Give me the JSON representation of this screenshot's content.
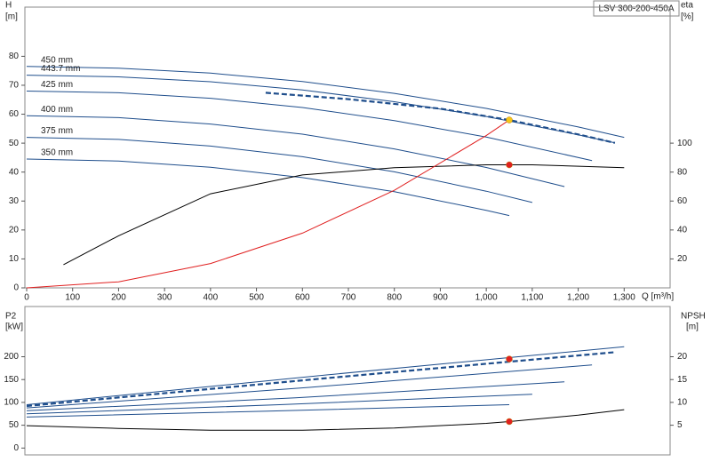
{
  "chart_data": [
    {
      "type": "line",
      "title": "LSV 300-200-450A",
      "xlabel": "Q [m³/h]",
      "ylabel": "H",
      "yunit": "[m]",
      "y2label": "eta",
      "y2unit": "[%]",
      "xlim": [
        0,
        1400
      ],
      "xticks": [
        0,
        100,
        200,
        300,
        400,
        500,
        600,
        700,
        800,
        900,
        {
          "value": 1000,
          "label": "1,000"
        },
        {
          "value": 1100,
          "label": "1,100"
        },
        {
          "value": 1200,
          "label": "1,200"
        },
        {
          "value": 1300,
          "label": "1,300"
        }
      ],
      "ylim": [
        0,
        97
      ],
      "yticks": [
        0,
        10,
        20,
        30,
        40,
        50,
        60,
        70,
        80
      ],
      "y2lim": [
        0,
        194
      ],
      "y2ticks": [
        20,
        40,
        60,
        80,
        100
      ],
      "series": [
        {
          "name": "450 mm",
          "color": "#1f4e8c",
          "x": [
            0,
            200,
            400,
            600,
            800,
            1000,
            1200,
            1300
          ],
          "values": [
            76.5,
            75.9,
            74.2,
            71.3,
            67.2,
            62.0,
            55.6,
            52.0
          ]
        },
        {
          "name": "443.7 mm",
          "color": "#1f4e8c",
          "x": [
            0,
            200,
            400,
            600,
            800,
            1000,
            1200,
            1280
          ],
          "values": [
            73.5,
            72.9,
            71.2,
            68.4,
            64.3,
            59.2,
            52.9,
            50.1
          ]
        },
        {
          "name": "425 mm",
          "color": "#1f4e8c",
          "x": [
            0,
            200,
            400,
            600,
            800,
            1000,
            1230
          ],
          "values": [
            68.0,
            67.4,
            65.5,
            62.3,
            57.8,
            52.1,
            44.0
          ]
        },
        {
          "name": "400 mm",
          "color": "#1f4e8c",
          "x": [
            0,
            200,
            400,
            600,
            800,
            1000,
            1170
          ],
          "values": [
            59.5,
            58.8,
            56.6,
            53.1,
            48.0,
            41.6,
            35.0
          ]
        },
        {
          "name": "375 mm",
          "color": "#1f4e8c",
          "x": [
            0,
            200,
            400,
            600,
            800,
            1000,
            1100
          ],
          "values": [
            52.0,
            51.3,
            49.0,
            45.3,
            40.1,
            33.4,
            29.5
          ]
        },
        {
          "name": "350 mm",
          "color": "#1f4e8c",
          "x": [
            0,
            200,
            400,
            600,
            800,
            1000,
            1050
          ],
          "values": [
            44.5,
            43.8,
            41.7,
            38.1,
            33.2,
            26.8,
            25.0
          ]
        },
        {
          "color": "#1f4e8c",
          "style": "dashed",
          "x": [
            520,
            700,
            900,
            1050,
            1200,
            1280
          ],
          "values": [
            67.4,
            65.2,
            61.9,
            58.0,
            53.0,
            50.1
          ]
        },
        {
          "color": "#000000",
          "axis": "y2",
          "x": [
            80,
            200,
            400,
            600,
            800,
            1000,
            1100,
            1300
          ],
          "values": [
            16,
            36,
            65,
            78,
            83,
            85,
            85,
            83
          ]
        },
        {
          "color": "#e02020",
          "x": [
            0,
            200,
            400,
            600,
            800,
            1000,
            1050
          ],
          "values": [
            0,
            2.1,
            8.4,
            18.9,
            33.7,
            52.6,
            58.0
          ]
        }
      ],
      "points": [
        {
          "x": 1050,
          "value": 58.0,
          "color": "#f5c518"
        },
        {
          "x": 1050,
          "value": 85,
          "color": "#e02020",
          "axis": "y2"
        }
      ]
    },
    {
      "type": "line",
      "ylabel": "P2",
      "yunit": "[kW]",
      "y2label": "NPSH",
      "y2unit": "[m]",
      "xlim": [
        0,
        1400
      ],
      "ylim": [
        -15,
        310
      ],
      "yticks": [
        0,
        50,
        100,
        150,
        200
      ],
      "y2lim": [
        -1.5,
        31
      ],
      "y2ticks": [
        5,
        10,
        15,
        20
      ],
      "series": [
        {
          "color": "#1f4e8c",
          "x": [
            0,
            650,
            1300
          ],
          "values": [
            95,
            160,
            222
          ]
        },
        {
          "color": "#1f4e8c",
          "style": "dashed",
          "x": [
            0,
            640,
            1280
          ],
          "values": [
            92,
            152,
            210
          ]
        },
        {
          "color": "#1f4e8c",
          "x": [
            0,
            615,
            1230
          ],
          "values": [
            88,
            133,
            182
          ]
        },
        {
          "color": "#1f4e8c",
          "x": [
            0,
            585,
            1170
          ],
          "values": [
            82,
            110,
            145
          ]
        },
        {
          "color": "#1f4e8c",
          "x": [
            0,
            550,
            1100
          ],
          "values": [
            75,
            95,
            118
          ]
        },
        {
          "color": "#1f4e8c",
          "x": [
            0,
            525,
            1050
          ],
          "values": [
            68,
            81,
            95
          ]
        },
        {
          "color": "#000000",
          "axis": "y2",
          "x": [
            0,
            200,
            400,
            600,
            800,
            1000,
            1050,
            1200,
            1300
          ],
          "values": [
            4.9,
            4.3,
            3.9,
            3.9,
            4.4,
            5.4,
            5.8,
            7.2,
            8.4
          ]
        }
      ],
      "points": [
        {
          "x": 1050,
          "value": 195,
          "color": "#e02020"
        },
        {
          "x": 1050,
          "value": 5.8,
          "color": "#e02020",
          "axis": "y2"
        }
      ]
    }
  ]
}
